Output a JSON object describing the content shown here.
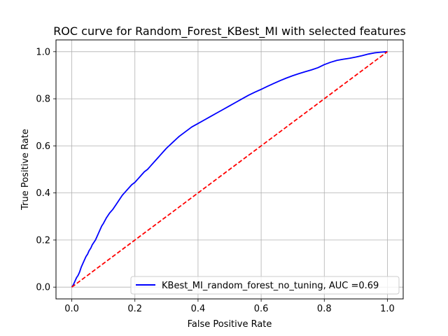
{
  "chart_data": {
    "type": "line",
    "title": "ROC curve for Random_Forest_KBest_MI with selected features",
    "xlabel": "False Positive Rate",
    "ylabel": "True Positive Rate",
    "xlim": [
      -0.05,
      1.05
    ],
    "ylim": [
      -0.05,
      1.05
    ],
    "xticks": [
      0.0,
      0.2,
      0.4,
      0.6,
      0.8,
      1.0
    ],
    "yticks": [
      0.0,
      0.2,
      0.4,
      0.6,
      0.8,
      1.0
    ],
    "xtick_labels": [
      "0.0",
      "0.2",
      "0.4",
      "0.6",
      "0.8",
      "1.0"
    ],
    "ytick_labels": [
      "0.0",
      "0.2",
      "0.4",
      "0.6",
      "0.8",
      "1.0"
    ],
    "grid": true,
    "legend_position": "lower-right",
    "series": [
      {
        "name": "KBest_MI_random_forest_no_tuning, AUC =0.69",
        "color": "#0000ff",
        "style": "solid",
        "x": [
          0.0,
          0.005,
          0.01,
          0.015,
          0.02,
          0.025,
          0.03,
          0.035,
          0.04,
          0.045,
          0.05,
          0.055,
          0.06,
          0.065,
          0.07,
          0.075,
          0.08,
          0.085,
          0.09,
          0.095,
          0.1,
          0.11,
          0.12,
          0.13,
          0.14,
          0.15,
          0.16,
          0.17,
          0.18,
          0.19,
          0.2,
          0.21,
          0.22,
          0.23,
          0.24,
          0.25,
          0.26,
          0.27,
          0.28,
          0.29,
          0.3,
          0.32,
          0.34,
          0.36,
          0.38,
          0.4,
          0.42,
          0.44,
          0.46,
          0.48,
          0.5,
          0.52,
          0.54,
          0.56,
          0.58,
          0.6,
          0.62,
          0.64,
          0.66,
          0.68,
          0.7,
          0.72,
          0.74,
          0.76,
          0.78,
          0.8,
          0.82,
          0.84,
          0.86,
          0.88,
          0.9,
          0.92,
          0.94,
          0.96,
          0.98,
          1.0
        ],
        "y": [
          0.0,
          0.01,
          0.025,
          0.04,
          0.05,
          0.065,
          0.085,
          0.1,
          0.115,
          0.13,
          0.14,
          0.155,
          0.165,
          0.18,
          0.19,
          0.2,
          0.215,
          0.23,
          0.245,
          0.26,
          0.27,
          0.295,
          0.315,
          0.33,
          0.35,
          0.37,
          0.39,
          0.405,
          0.42,
          0.435,
          0.445,
          0.46,
          0.475,
          0.49,
          0.5,
          0.515,
          0.53,
          0.545,
          0.56,
          0.575,
          0.59,
          0.615,
          0.64,
          0.66,
          0.68,
          0.695,
          0.71,
          0.725,
          0.74,
          0.755,
          0.77,
          0.785,
          0.8,
          0.815,
          0.828,
          0.84,
          0.853,
          0.865,
          0.877,
          0.888,
          0.898,
          0.907,
          0.915,
          0.923,
          0.932,
          0.945,
          0.955,
          0.963,
          0.968,
          0.972,
          0.977,
          0.983,
          0.99,
          0.995,
          0.998,
          1.0
        ]
      },
      {
        "color": "#ff0000",
        "style": "dashed",
        "x": [
          0.0,
          1.0
        ],
        "y": [
          0.0,
          1.0
        ]
      }
    ]
  }
}
